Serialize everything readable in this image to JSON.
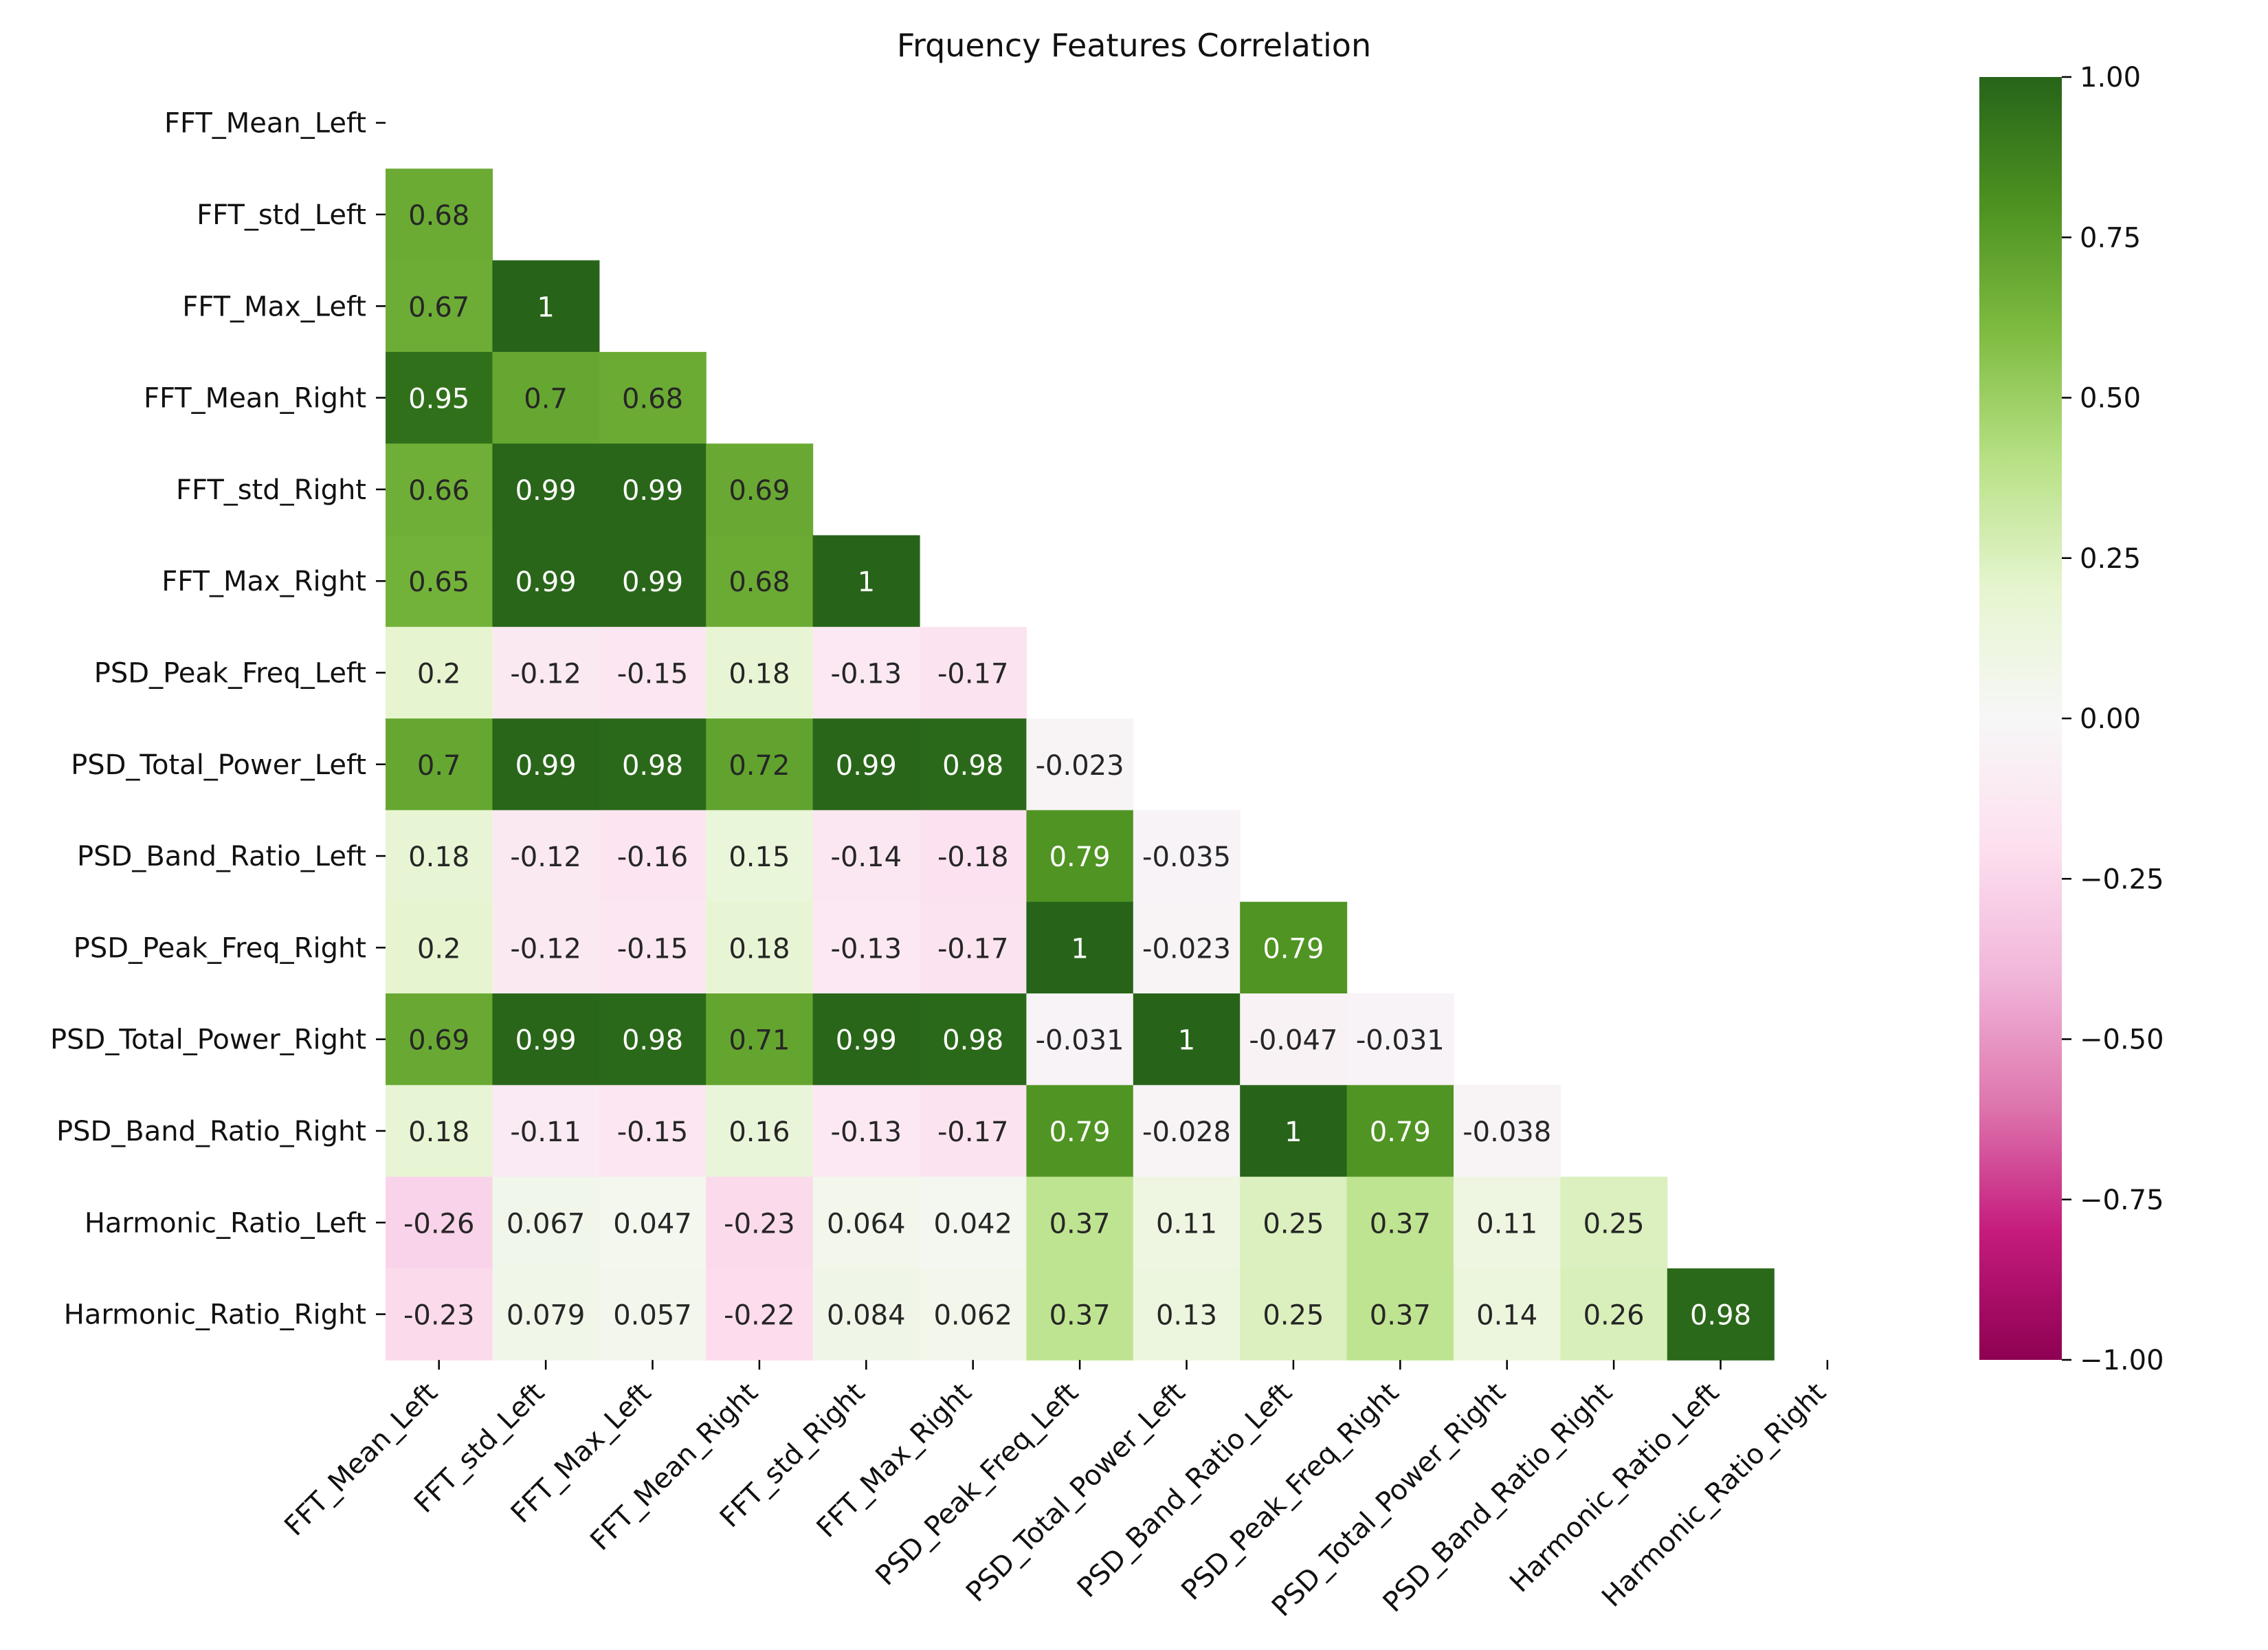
{
  "chart_data": {
    "type": "heatmap",
    "title": "Frquency Features Correlation",
    "xlabel": "",
    "ylabel": "",
    "mask": "upper-triangle-including-diagonal",
    "labels": [
      "FFT_Mean_Left",
      "FFT_std_Left",
      "FFT_Max_Left",
      "FFT_Mean_Right",
      "FFT_std_Right",
      "FFT_Max_Right",
      "PSD_Peak_Freq_Left",
      "PSD_Total_Power_Left",
      "PSD_Band_Ratio_Left",
      "PSD_Peak_Freq_Right",
      "PSD_Total_Power_Right",
      "PSD_Band_Ratio_Right",
      "Harmonic_Ratio_Left",
      "Harmonic_Ratio_Right"
    ],
    "values": [
      [],
      [
        "0.68"
      ],
      [
        "0.67",
        "1"
      ],
      [
        "0.95",
        "0.7",
        "0.68"
      ],
      [
        "0.66",
        "0.99",
        "0.99",
        "0.69"
      ],
      [
        "0.65",
        "0.99",
        "0.99",
        "0.68",
        "1"
      ],
      [
        "0.2",
        "-0.12",
        "-0.15",
        "0.18",
        "-0.13",
        "-0.17"
      ],
      [
        "0.7",
        "0.99",
        "0.98",
        "0.72",
        "0.99",
        "0.98",
        "-0.023"
      ],
      [
        "0.18",
        "-0.12",
        "-0.16",
        "0.15",
        "-0.14",
        "-0.18",
        "0.79",
        "-0.035"
      ],
      [
        "0.2",
        "-0.12",
        "-0.15",
        "0.18",
        "-0.13",
        "-0.17",
        "1",
        "-0.023",
        "0.79"
      ],
      [
        "0.69",
        "0.99",
        "0.98",
        "0.71",
        "0.99",
        "0.98",
        "-0.031",
        "1",
        "-0.047",
        "-0.031"
      ],
      [
        "0.18",
        "-0.11",
        "-0.15",
        "0.16",
        "-0.13",
        "-0.17",
        "0.79",
        "-0.028",
        "1",
        "0.79",
        "-0.038"
      ],
      [
        "-0.26",
        "0.067",
        "0.047",
        "-0.23",
        "0.064",
        "0.042",
        "0.37",
        "0.11",
        "0.25",
        "0.37",
        "0.11",
        "0.25"
      ],
      [
        "-0.23",
        "0.079",
        "0.057",
        "-0.22",
        "0.084",
        "0.062",
        "0.37",
        "0.13",
        "0.25",
        "0.37",
        "0.14",
        "0.26",
        "0.98"
      ]
    ],
    "colormap": "PiYG",
    "colorbar": {
      "vmin": -1.0,
      "vmax": 1.0,
      "ticks": [
        1.0,
        0.75,
        0.5,
        0.25,
        0.0,
        -0.25,
        -0.5,
        -0.75,
        -1.0
      ],
      "tick_labels": [
        "1.00",
        "0.75",
        "0.50",
        "0.25",
        "0.00",
        "−0.25",
        "−0.50",
        "−0.75",
        "−1.00"
      ]
    }
  }
}
